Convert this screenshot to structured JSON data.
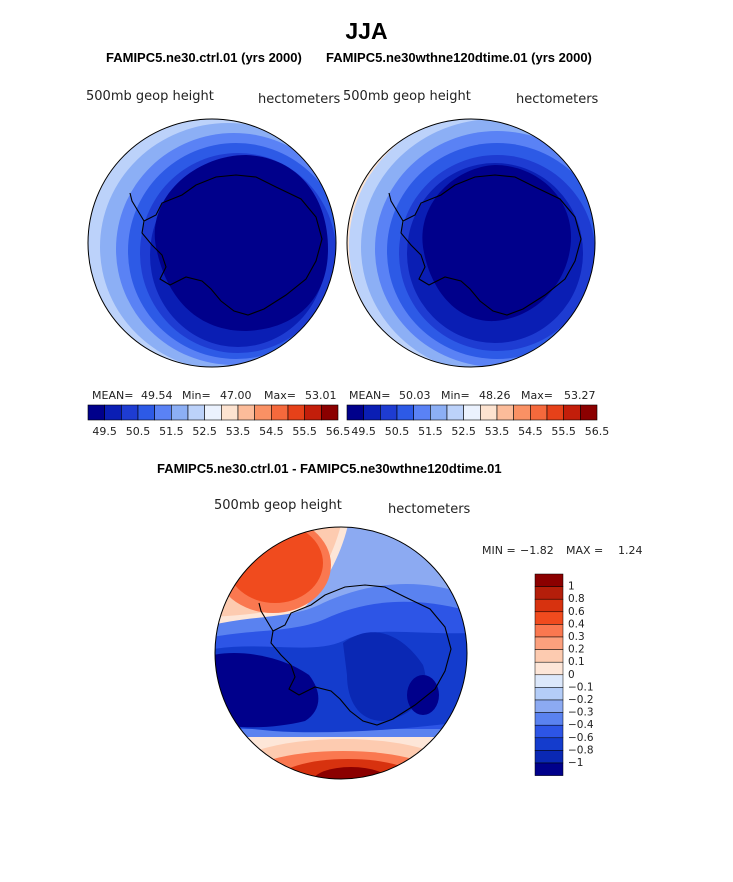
{
  "chart_data": [
    {
      "type": "heatmap",
      "projection": "south-polar-stereographic",
      "panel_title": "FAMIPC5.ne30.ctrl.01 (yrs 2000)",
      "field_label": "500mb geop height",
      "units_label": "hectometers",
      "stats": {
        "mean_label": "MEAN=",
        "mean": "49.54",
        "min_label": "Min=",
        "min": "47.00",
        "max_label": "Max=",
        "max": "53.01"
      },
      "colorbar_ticks": [
        "49.5",
        "50.5",
        "51.5",
        "52.5",
        "53.5",
        "54.5",
        "55.5",
        "56.5"
      ]
    },
    {
      "type": "heatmap",
      "projection": "south-polar-stereographic",
      "panel_title": "FAMIPC5.ne30wthne120dtime.01 (yrs 2000)",
      "field_label": "500mb geop height",
      "units_label": "hectometers",
      "stats": {
        "mean_label": "MEAN=",
        "mean": "50.03",
        "min_label": "Min=",
        "min": "48.26",
        "max_label": "Max=",
        "max": "53.27"
      },
      "colorbar_ticks": [
        "49.5",
        "50.5",
        "51.5",
        "52.5",
        "53.5",
        "54.5",
        "55.5",
        "56.5"
      ]
    },
    {
      "type": "heatmap",
      "projection": "south-polar-stereographic",
      "panel_title": "FAMIPC5.ne30.ctrl.01 - FAMIPC5.ne30wthne120dtime.01",
      "field_label": "500mb geop height",
      "units_label": "hectometers",
      "stats": {
        "min_label": "MIN =",
        "min": "−1.82",
        "max_label": "MAX =",
        "max": "1.24"
      },
      "colorbar_ticks": [
        "1",
        "0.8",
        "0.6",
        "0.4",
        "0.3",
        "0.2",
        "0.1",
        "0",
        "−0.1",
        "−0.2",
        "−0.3",
        "−0.4",
        "−0.6",
        "−0.8",
        "−1"
      ]
    }
  ],
  "figure": {
    "title": "JJA"
  },
  "colors": {
    "abs_scale": [
      "#00008b",
      "#0a1eb4",
      "#1e3cd2",
      "#2d5ae6",
      "#5a82f5",
      "#8caff5",
      "#bcd2fa",
      "#ebf2fe",
      "#fde3d0",
      "#fcbc9a",
      "#fa9164",
      "#f5693c",
      "#e64119",
      "#c31e0a",
      "#8b0000"
    ],
    "diff_scale": [
      "#8b0000",
      "#b41e0a",
      "#d7320f",
      "#f04b1e",
      "#fa7850",
      "#fca07d",
      "#fdcbb0",
      "#fde6d8",
      "#dce8fb",
      "#b4cdf8",
      "#8caaf2",
      "#5a82f0",
      "#2d55e6",
      "#143ccd",
      "#0a28b4",
      "#00008b"
    ]
  }
}
